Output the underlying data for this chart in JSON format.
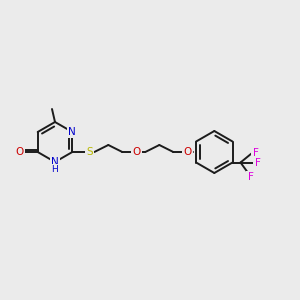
{
  "bg_color": "#ebebeb",
  "bond_color": "#1c1c1c",
  "bond_lw": 1.4,
  "atom_colors": {
    "N": "#0000cc",
    "O": "#cc0000",
    "S": "#b8b800",
    "F": "#dd00dd",
    "H": "#0000cc"
  },
  "font_size": 7.5,
  "fig_size": [
    3.0,
    3.0
  ],
  "dpi": 100
}
